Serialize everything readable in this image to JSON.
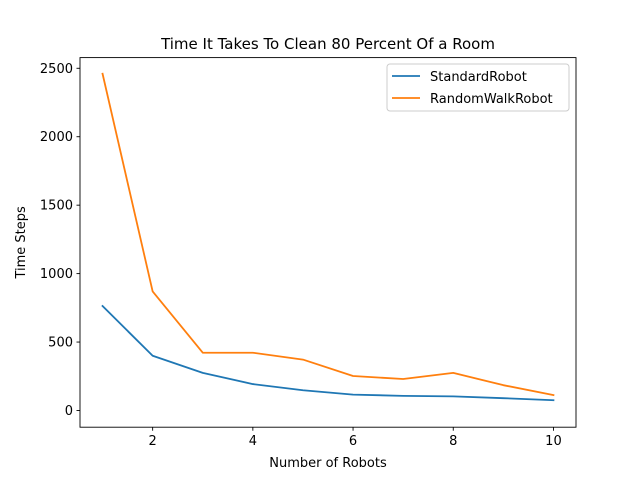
{
  "chart_data": {
    "type": "line",
    "title": "Time It Takes To Clean 80 Percent Of a Room",
    "xlabel": "Number of Robots",
    "ylabel": "Time Steps",
    "xlim": [
      0.55,
      10.45
    ],
    "ylim": [
      -122,
      2578
    ],
    "xticks": [
      2,
      4,
      6,
      8,
      10
    ],
    "xtick_labels": [
      "2",
      "4",
      "6",
      "8",
      "10"
    ],
    "yticks": [
      0,
      500,
      1000,
      1500,
      2000,
      2500
    ],
    "ytick_labels": [
      "0",
      "500",
      "1000",
      "1500",
      "2000",
      "2500"
    ],
    "grid": false,
    "legend_position": "top-right",
    "x": [
      1,
      2,
      3,
      4,
      5,
      6,
      7,
      8,
      9,
      10
    ],
    "series": [
      {
        "name": "StandardRobot",
        "color": "#1f77b4",
        "values": [
          763,
          400,
          275,
          193,
          148,
          116,
          107,
          103,
          90,
          75
        ]
      },
      {
        "name": "RandomWalkRobot",
        "color": "#ff7f0e",
        "values": [
          2460,
          870,
          422,
          422,
          372,
          252,
          230,
          275,
          185,
          113
        ]
      }
    ]
  }
}
